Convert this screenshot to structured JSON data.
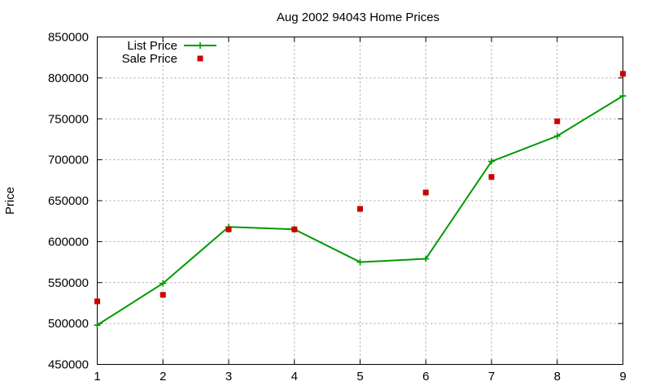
{
  "chart_data": {
    "type": "line",
    "title": "Aug 2002 94043 Home Prices",
    "xlabel": "",
    "ylabel": "Price",
    "xlim": [
      1,
      9
    ],
    "ylim": [
      450000,
      850000
    ],
    "x_ticks": [
      "1",
      "2",
      "3",
      "4",
      "5",
      "6",
      "7",
      "8",
      "9"
    ],
    "y_ticks": [
      "450000",
      "500000",
      "550000",
      "600000",
      "650000",
      "700000",
      "750000",
      "800000",
      "850000"
    ],
    "grid": true,
    "legend_position": "top-left",
    "x": [
      1,
      2,
      3,
      4,
      5,
      6,
      7,
      8,
      9
    ],
    "series": [
      {
        "name": "List Price",
        "style": "linespoints",
        "marker": "plus",
        "color": "#009900",
        "values": [
          498000,
          549000,
          618000,
          615000,
          575000,
          579000,
          698000,
          729000,
          778000
        ]
      },
      {
        "name": "Sale Price",
        "style": "points",
        "marker": "square",
        "color": "#cc0000",
        "values": [
          527000,
          535000,
          615000,
          615000,
          640000,
          660000,
          679000,
          747000,
          805000
        ]
      }
    ]
  }
}
